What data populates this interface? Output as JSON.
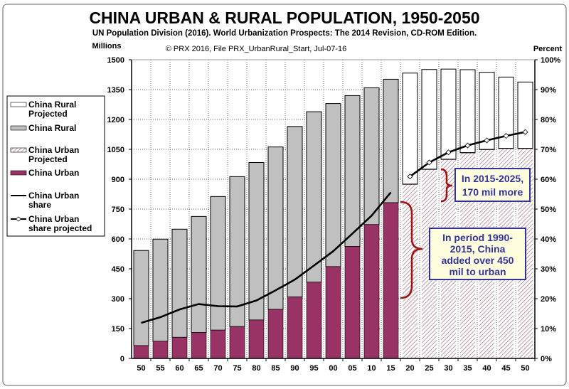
{
  "chart_data": {
    "type": "bar",
    "title": "CHINA URBAN & RURAL POPULATION, 1950-2050",
    "subtitle": "UN Population Division (2016). World Urbanization Prospects: The 2014 Revision, CD-ROM Edition.",
    "credit": "© PRX 2016, File PRX_UrbanRural_Start, Jul-07-16",
    "ylabel": "Millions",
    "y2label": "Percent",
    "ylim": [
      0,
      1500
    ],
    "y2lim": [
      0,
      100
    ],
    "yticks": [
      "0",
      "150",
      "300",
      "450",
      "600",
      "750",
      "900",
      "1050",
      "1200",
      "1350",
      "1500"
    ],
    "y2ticks": [
      "0%",
      "10%",
      "20%",
      "30%",
      "40%",
      "50%",
      "60%",
      "70%",
      "80%",
      "90%",
      "100%"
    ],
    "categories": [
      "50",
      "55",
      "60",
      "65",
      "70",
      "75",
      "80",
      "85",
      "90",
      "95",
      "00",
      "05",
      "10",
      "15",
      "20",
      "25",
      "30",
      "35",
      "40",
      "45",
      "50"
    ],
    "projected_from_index": 14,
    "series": [
      {
        "name": "China Urban",
        "values": [
          64,
          86,
          106,
          130,
          142,
          160,
          193,
          246,
          309,
          383,
          461,
          562,
          672,
          782,
          null,
          null,
          null,
          null,
          null,
          null,
          null
        ]
      },
      {
        "name": "China Rural",
        "values": [
          478,
          513,
          543,
          583,
          671,
          753,
          791,
          816,
          856,
          856,
          819,
          758,
          687,
          620,
          null,
          null,
          null,
          null,
          null,
          null,
          null
        ]
      },
      {
        "name": "China Urban Projected",
        "values": [
          null,
          null,
          null,
          null,
          null,
          null,
          null,
          null,
          null,
          null,
          null,
          null,
          null,
          null,
          875,
          950,
          1000,
          1033,
          1049,
          1055,
          1055
        ]
      },
      {
        "name": "China Rural Projected",
        "values": [
          null,
          null,
          null,
          null,
          null,
          null,
          null,
          null,
          null,
          null,
          null,
          null,
          null,
          null,
          558,
          501,
          453,
          417,
          388,
          358,
          333
        ]
      },
      {
        "name": "China Urban share",
        "axis": "percent",
        "values": [
          11.9,
          13.8,
          16.4,
          18.2,
          17.5,
          17.4,
          19.4,
          22.8,
          26.4,
          31.1,
          35.9,
          41.8,
          47.8,
          55.6,
          null,
          null,
          null,
          null,
          null,
          null,
          null
        ]
      },
      {
        "name": "China Urban share projected",
        "axis": "percent",
        "values": [
          null,
          null,
          null,
          null,
          null,
          null,
          null,
          null,
          null,
          null,
          null,
          null,
          null,
          null,
          60.9,
          65.6,
          69.0,
          71.3,
          73.0,
          74.5,
          75.8
        ]
      }
    ],
    "legend": {
      "placement": "left",
      "entries": [
        {
          "label1": "China Rural",
          "label2": "Projected",
          "key": "rural-proj"
        },
        {
          "label1": "China Rural",
          "label2": "",
          "key": "rural"
        },
        {
          "label1": "China Urban",
          "label2": "Projected",
          "key": "urban-proj"
        },
        {
          "label1": "China Urban",
          "label2": "",
          "key": "urban"
        },
        {
          "label1": "China Urban",
          "label2": "share",
          "key": "share"
        },
        {
          "label1": "China Urban",
          "label2": "share projected",
          "key": "share-proj"
        }
      ]
    },
    "annotations": [
      {
        "lines": [
          "In 2015-2025,",
          "170 mil more"
        ]
      },
      {
        "lines": [
          "In period 1990-",
          "2015, China",
          "added over 450",
          "mil to urban"
        ]
      }
    ],
    "colors": {
      "urban": "#993366",
      "rural": "#c0c0c0",
      "rural_projected": "#ffffff",
      "hatch": "#9a6a80",
      "annotation_fill": "#ffffe0",
      "annotation_border": "#333399",
      "annotation_text": "#333399",
      "brace": "#a01010"
    },
    "grid": true
  }
}
